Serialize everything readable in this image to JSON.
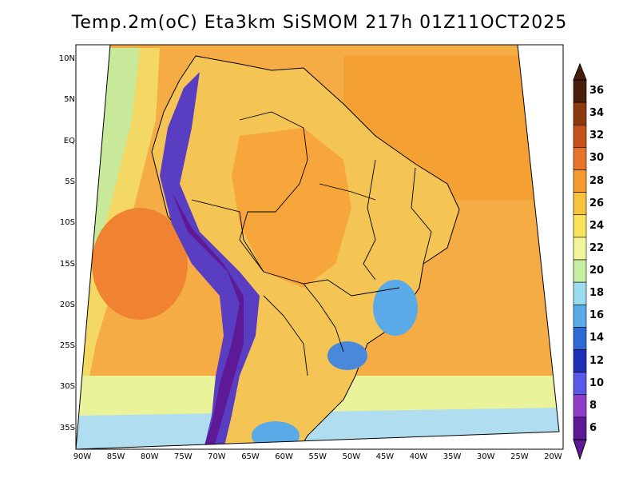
{
  "title": "Temp.2m(oC) Eta3km SiSMOM 217h 01Z11OCT2025",
  "y_ticks": [
    "10N",
    "5N",
    "EQ",
    "5S",
    "10S",
    "15S",
    "20S",
    "25S",
    "30S",
    "35S"
  ],
  "x_ticks": [
    "90W",
    "85W",
    "80W",
    "75W",
    "70W",
    "65W",
    "60W",
    "55W",
    "50W",
    "45W",
    "40W",
    "35W",
    "30W",
    "25W",
    "20W"
  ],
  "colorbar": {
    "labels": [
      "36",
      "34",
      "32",
      "30",
      "28",
      "26",
      "24",
      "22",
      "20",
      "18",
      "16",
      "14",
      "12",
      "10",
      "8",
      "6"
    ],
    "colors": [
      "#4a1e0c",
      "#8b3a10",
      "#c4501a",
      "#e8732a",
      "#f59a2e",
      "#f7c23c",
      "#f7e45a",
      "#f2f59a",
      "#c4eea0",
      "#9bdcf0",
      "#5aaae8",
      "#2e6ad6",
      "#1e30b8",
      "#5a58e6",
      "#8e3ec8",
      "#5e1a96"
    ]
  },
  "map": {
    "ocean_color": "#f6b24a",
    "land_color": "#f4c85a",
    "border_color": "#000000"
  }
}
